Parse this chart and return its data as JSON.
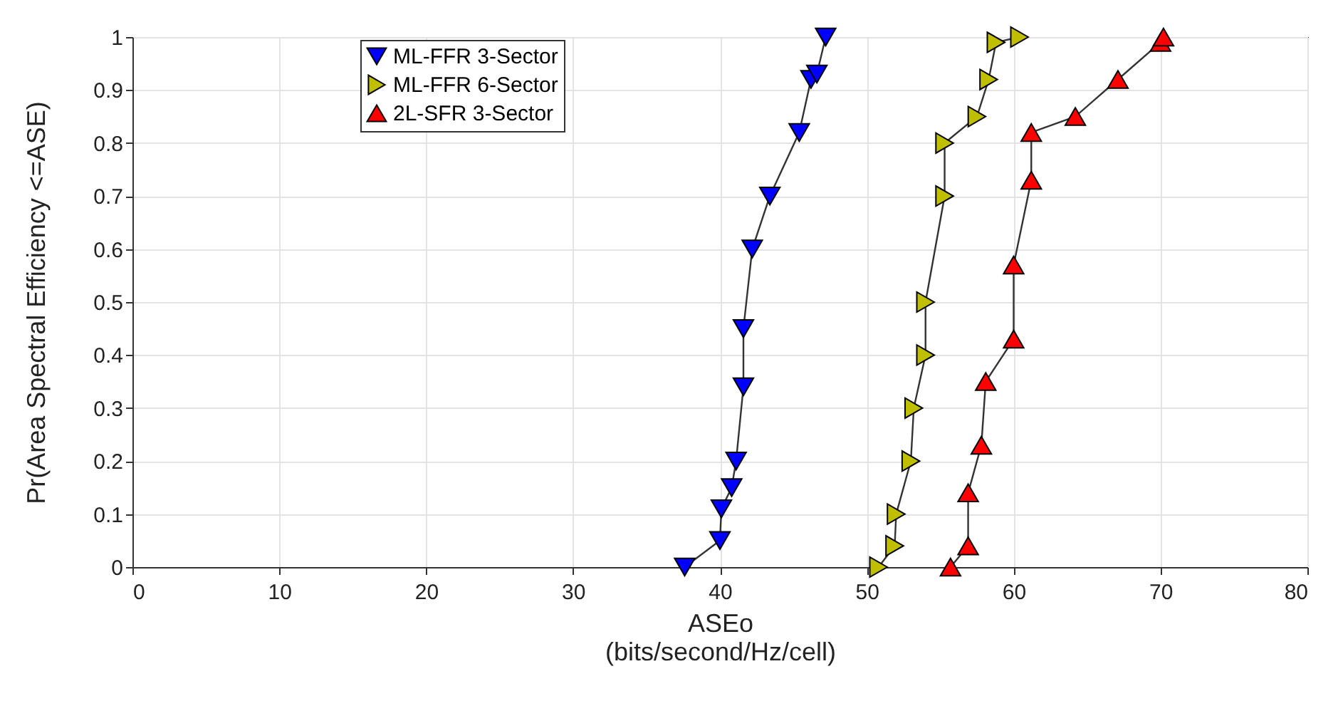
{
  "chart_data": {
    "type": "line",
    "xlabel": "ASEo\n(bits/second/Hz/cell)",
    "ylabel": "Pr(Area Spectral Efficiency <=ASE)",
    "xlim": [
      0,
      80
    ],
    "xticks": [
      0,
      10,
      20,
      30,
      40,
      50,
      60,
      70,
      80
    ],
    "ylim": [
      0,
      1
    ],
    "yticks": [
      0,
      0.1,
      0.2,
      0.3,
      0.4,
      0.5,
      0.6,
      0.7,
      0.8,
      0.9,
      1
    ],
    "grid": true,
    "legend": "top left",
    "line_style": "solid",
    "series": [
      {
        "name": "ML-FFR 3-Sector",
        "color": "#0000ff",
        "marker": "triangle-down",
        "x": [
          37.6,
          40.0,
          40.1,
          40.8,
          41.1,
          41.6,
          41.6,
          42.2,
          43.4,
          45.4,
          46.2,
          46.6,
          47.2
        ],
        "values": [
          0,
          0.05,
          0.11,
          0.15,
          0.2,
          0.34,
          0.45,
          0.6,
          0.7,
          0.82,
          0.92,
          0.93,
          1
        ]
      },
      {
        "name": "ML-FFR 6-Sector",
        "color": "#bfbf00",
        "marker": "triangle-right",
        "x": [
          50.8,
          51.9,
          52.0,
          53.0,
          53.2,
          54.0,
          54.0,
          55.3,
          55.3,
          57.5,
          58.3,
          58.8,
          60.4
        ],
        "values": [
          0,
          0.04,
          0.1,
          0.2,
          0.3,
          0.4,
          0.5,
          0.7,
          0.8,
          0.85,
          0.92,
          0.99,
          1
        ]
      },
      {
        "name": "2L-SFR 3-Sector",
        "color": "#ff0000",
        "marker": "triangle-up",
        "x": [
          55.7,
          56.9,
          56.9,
          57.8,
          58.1,
          60.0,
          60.0,
          61.2,
          61.2,
          64.2,
          67.1,
          70.0,
          70.2
        ],
        "values": [
          0,
          0.04,
          0.14,
          0.23,
          0.35,
          0.43,
          0.57,
          0.73,
          0.82,
          0.85,
          0.92,
          0.99,
          1
        ]
      }
    ]
  }
}
